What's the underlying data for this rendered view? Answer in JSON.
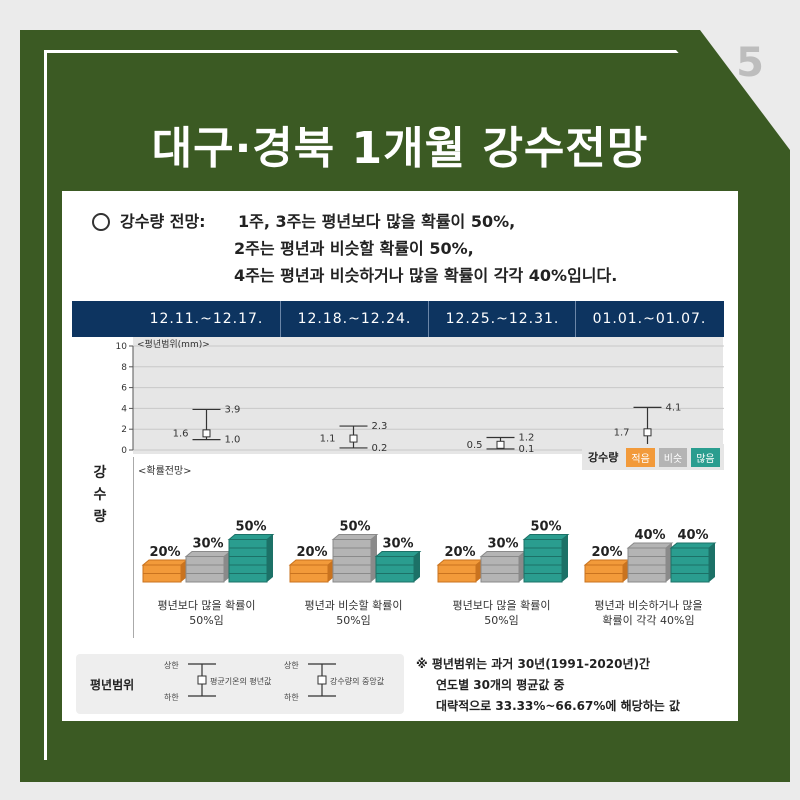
{
  "page_number": "5",
  "title": "대구·경북 1개월 강수전망",
  "summary": {
    "label": "강수량 전망:",
    "lines": [
      "1주, 3주는 평년보다 많을 확률이 50%,",
      "2주는 평년과 비슷할 확률이 50%,",
      "4주는 평년과 비슷하거나 많을 확률이 각각 40%입니다."
    ]
  },
  "weeks": [
    "12.11.~12.17.",
    "12.18.~12.24.",
    "12.25.~12.31.",
    "01.01.~01.07."
  ],
  "section_label": "강수량",
  "range_label": "<평년범위(mm)>",
  "prob_label": "<확률전망>",
  "legend": {
    "title": "강수량",
    "low": "적음",
    "normal": "비슷",
    "high": "많음"
  },
  "colors": {
    "low": "#f29a3a",
    "normal": "#b4b4b4",
    "high": "#2a9d8f",
    "header": "#0d3460",
    "frame": "#3b5a23"
  },
  "chart_data": {
    "type": "table",
    "ylabel": "<평년범위(mm)>",
    "ylim": [
      0,
      10
    ],
    "yticks": [
      0,
      2,
      4,
      6,
      8,
      10
    ],
    "ranges": [
      {
        "week": "12.11.~12.17.",
        "upper": "3.9",
        "median": "1.6",
        "lower": "1.0",
        "upper_v": 3.9,
        "median_v": 1.6,
        "lower_v": 1.0
      },
      {
        "week": "12.18.~12.24.",
        "upper": "2.3",
        "median": "1.1",
        "lower": "0.2",
        "upper_v": 2.3,
        "median_v": 1.1,
        "lower_v": 0.2
      },
      {
        "week": "12.25.~12.31.",
        "upper": "1.2",
        "median": "0.5",
        "lower": "0.1",
        "upper_v": 1.2,
        "median_v": 0.5,
        "lower_v": 0.1
      },
      {
        "week": "01.01.~01.07.",
        "upper": "4.1",
        "median": "1.7",
        "lower": "",
        "upper_v": 4.1,
        "median_v": 1.7,
        "lower_v": 0.2
      }
    ],
    "probabilities": [
      {
        "week": "12.11.~12.17.",
        "low": 20,
        "normal": 30,
        "high": 50
      },
      {
        "week": "12.18.~12.24.",
        "low": 20,
        "normal": 50,
        "high": 30
      },
      {
        "week": "12.25.~12.31.",
        "low": 20,
        "normal": 30,
        "high": 50
      },
      {
        "week": "01.01.~01.07.",
        "low": 20,
        "normal": 40,
        "high": 40
      }
    ]
  },
  "prob_texts": {
    "w1": [
      "20%",
      "30%",
      "50%"
    ],
    "w2": [
      "20%",
      "50%",
      "30%"
    ],
    "w3": [
      "20%",
      "30%",
      "50%"
    ],
    "w4": [
      "20%",
      "40%",
      "40%"
    ]
  },
  "descriptions": [
    [
      "평년보다 많을 확률이",
      "50%임"
    ],
    [
      "평년과 비슷할 확률이",
      "50%임"
    ],
    [
      "평년보다 많을 확률이",
      "50%임"
    ],
    [
      "평년과 비슷하거나 많을",
      "확률이 각각 40%임"
    ]
  ],
  "range_legend": {
    "title": "평년범위",
    "upper": "상한",
    "lower": "하한",
    "mean_label": "평균기온의 평년값",
    "median_label": "강수량의 중앙값"
  },
  "note": {
    "lines": [
      "※ 평년범위는 과거 30년(1991-2020년)간",
      "연도별 30개의 평균값 중",
      "대략적으로 33.33%~66.67%에 해당하는 값"
    ]
  }
}
